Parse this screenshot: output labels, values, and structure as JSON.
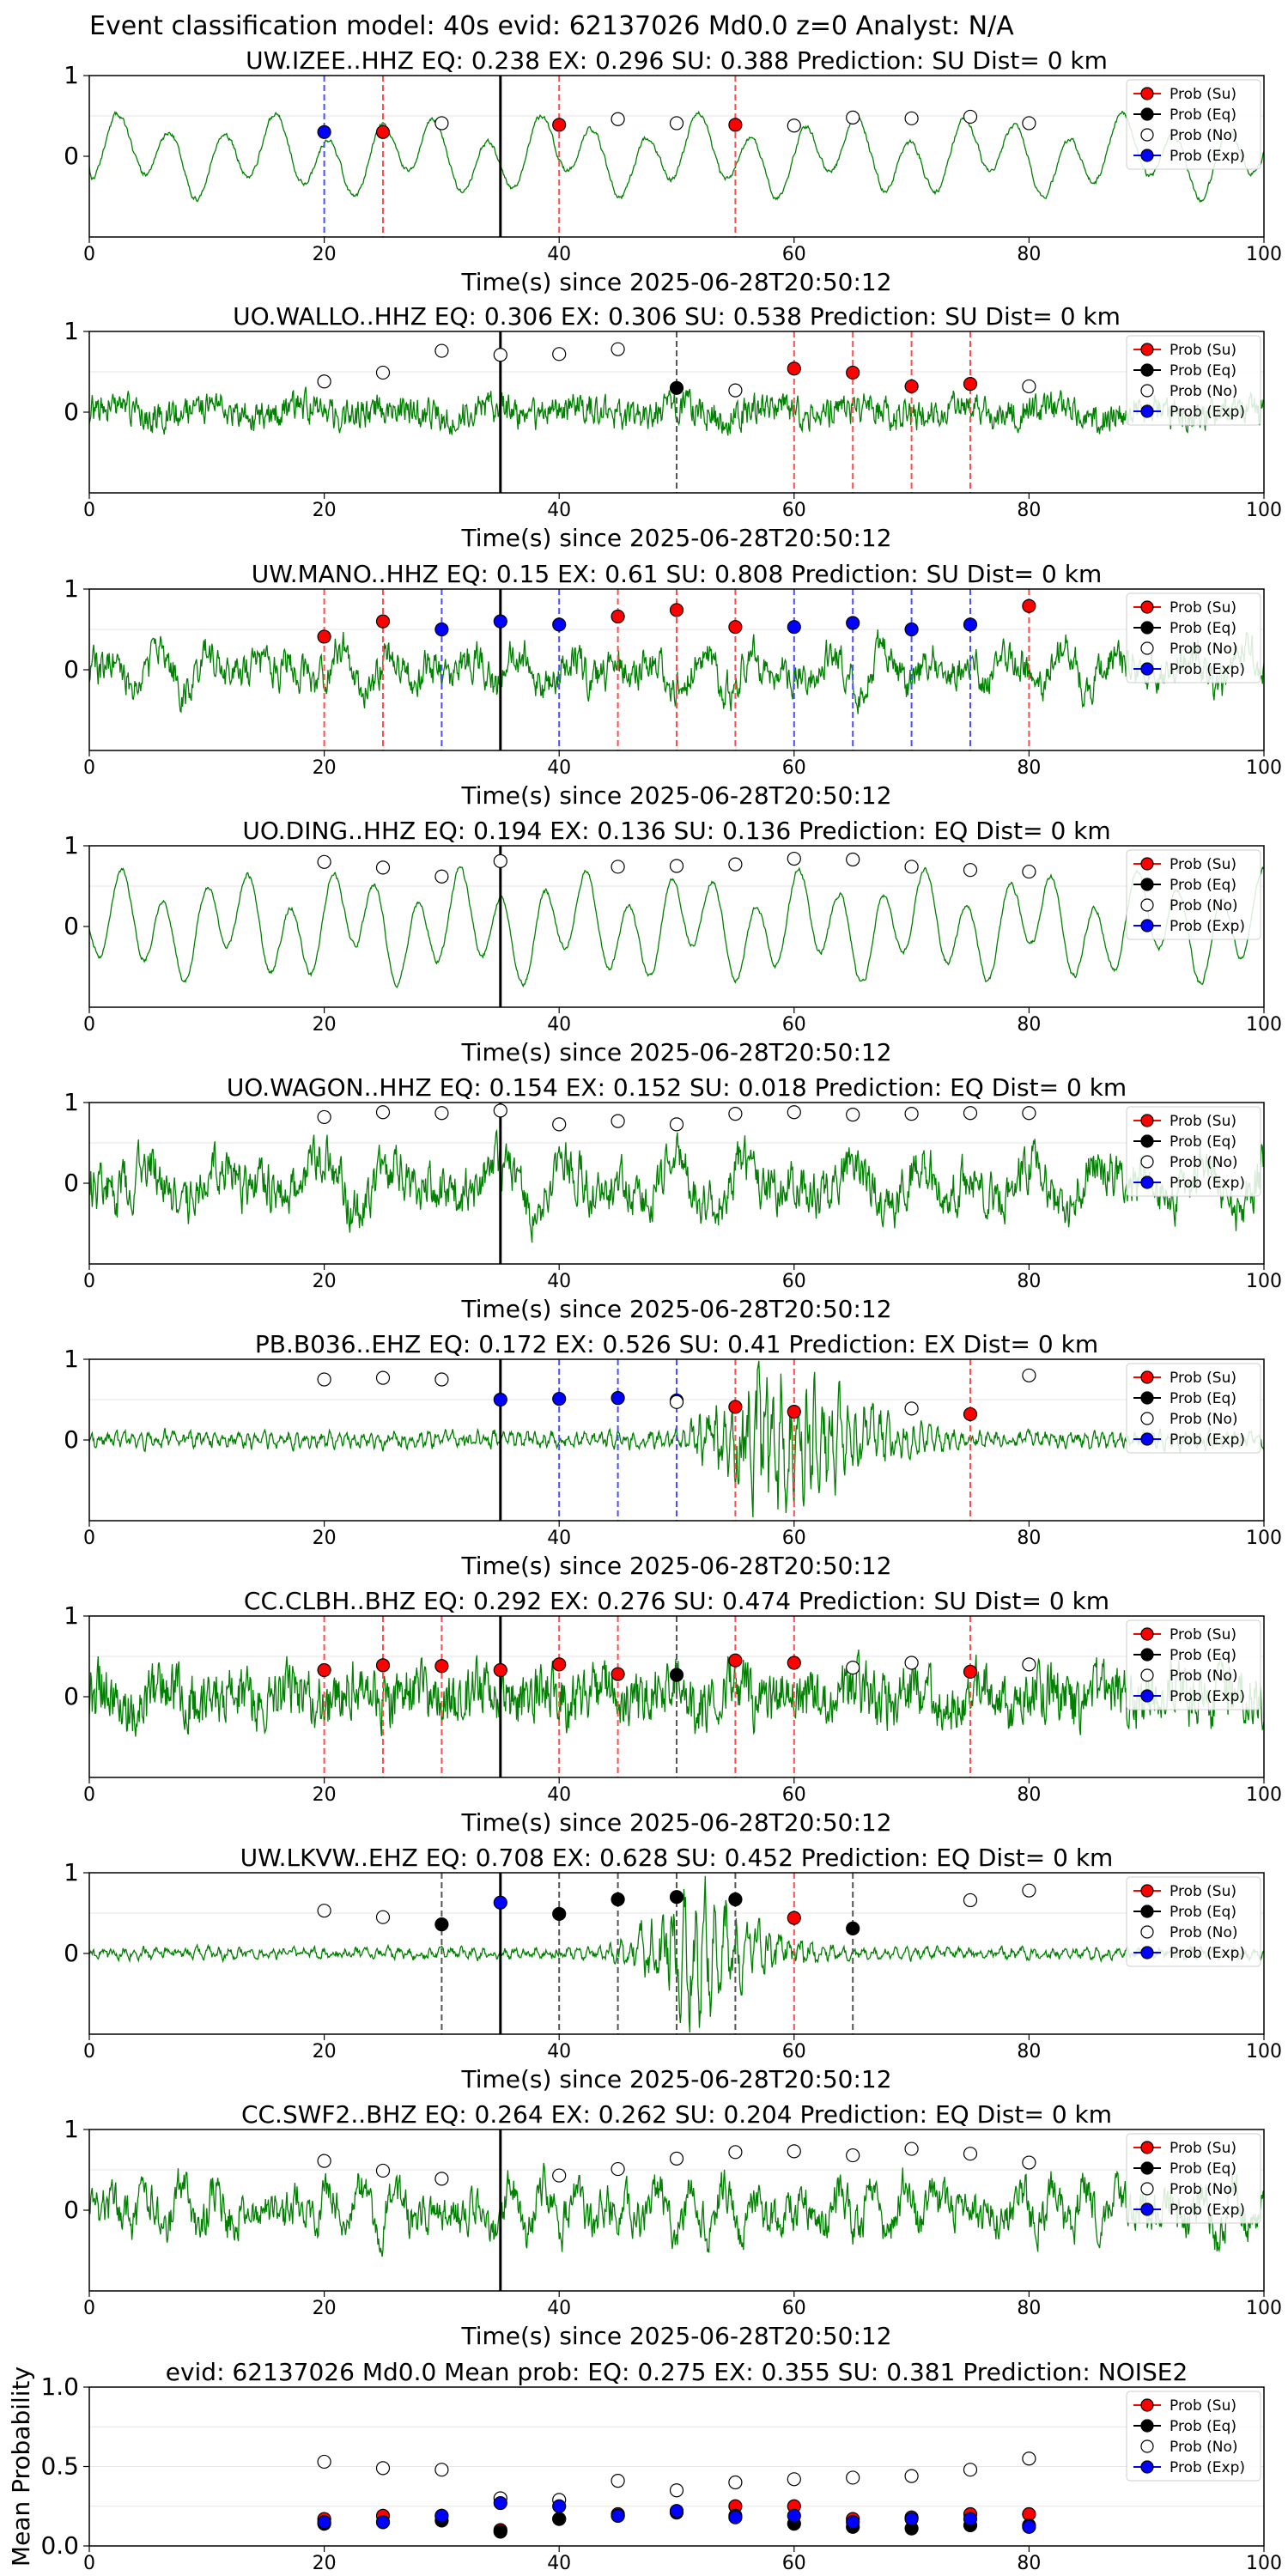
{
  "figure_title": "Event classification model: 40s evid: 62137026 Md0.0 z=0 Analyst: N/A",
  "legend_labels": [
    "Prob (Su)",
    "Prob (Eq)",
    "Prob (No)",
    "Prob (Exp)"
  ],
  "colors": {
    "su": "#ff0000",
    "eq": "#000000",
    "no": "#ffffff",
    "exp": "#0000ff",
    "trace": "#008000",
    "su_line": "#ff4d4d",
    "eq_line": "#555555",
    "exp_line": "#4d4dff"
  },
  "chart_data": [
    {
      "type": "line",
      "title": "UW.IZEE..HHZ   EQ: 0.238  EX: 0.296  SU: 0.388   Prediction: SU    Dist= 0 km",
      "xlabel": "Time(s) since 2025-06-28T20:50:12",
      "ylabel": "",
      "xlim": [
        0,
        100
      ],
      "ylim": [
        -1,
        1
      ],
      "xticks": [
        "0",
        "20",
        "40",
        "60",
        "80",
        "100"
      ],
      "yticks": [
        "0",
        "1"
      ],
      "grid": "horizontal",
      "legend": "top-right",
      "pick_time": 35,
      "trace": {
        "seed": 11,
        "style": "lowfreq",
        "amp": 0.45,
        "period": 4.5
      },
      "points": [
        {
          "x": 20,
          "y": 0.3,
          "cls": "exp"
        },
        {
          "x": 25,
          "y": 0.3,
          "cls": "su"
        },
        {
          "x": 30,
          "y": 0.41,
          "cls": "no"
        },
        {
          "x": 40,
          "y": 0.39,
          "cls": "su"
        },
        {
          "x": 45,
          "y": 0.46,
          "cls": "no"
        },
        {
          "x": 50,
          "y": 0.41,
          "cls": "no"
        },
        {
          "x": 55,
          "y": 0.39,
          "cls": "su"
        },
        {
          "x": 60,
          "y": 0.38,
          "cls": "no"
        },
        {
          "x": 65,
          "y": 0.48,
          "cls": "no"
        },
        {
          "x": 70,
          "y": 0.47,
          "cls": "no"
        },
        {
          "x": 75,
          "y": 0.49,
          "cls": "no"
        },
        {
          "x": 80,
          "y": 0.41,
          "cls": "no"
        }
      ]
    },
    {
      "type": "line",
      "title": "UO.WALLO..HHZ   EQ: 0.306  EX: 0.306  SU: 0.538   Prediction: SU    Dist= 0 km",
      "xlabel": "Time(s) since 2025-06-28T20:50:12",
      "ylabel": "",
      "xlim": [
        0,
        100
      ],
      "ylim": [
        -1,
        1
      ],
      "xticks": [
        "0",
        "20",
        "40",
        "60",
        "80",
        "100"
      ],
      "yticks": [
        "0",
        "1"
      ],
      "grid": "horizontal",
      "legend": "top-right",
      "pick_time": 35,
      "trace": {
        "seed": 23,
        "style": "noise",
        "amp": 0.16,
        "period": 1.2
      },
      "points": [
        {
          "x": 20,
          "y": 0.38,
          "cls": "no"
        },
        {
          "x": 25,
          "y": 0.49,
          "cls": "no"
        },
        {
          "x": 30,
          "y": 0.76,
          "cls": "no"
        },
        {
          "x": 35,
          "y": 0.71,
          "cls": "no"
        },
        {
          "x": 40,
          "y": 0.72,
          "cls": "no"
        },
        {
          "x": 45,
          "y": 0.78,
          "cls": "no"
        },
        {
          "x": 50,
          "y": 0.3,
          "cls": "eq"
        },
        {
          "x": 55,
          "y": 0.27,
          "cls": "no"
        },
        {
          "x": 60,
          "y": 0.54,
          "cls": "su"
        },
        {
          "x": 65,
          "y": 0.49,
          "cls": "su"
        },
        {
          "x": 70,
          "y": 0.32,
          "cls": "su"
        },
        {
          "x": 75,
          "y": 0.35,
          "cls": "su"
        },
        {
          "x": 80,
          "y": 0.32,
          "cls": "no"
        }
      ]
    },
    {
      "type": "line",
      "title": "UW.MANO..HHZ   EQ: 0.15  EX: 0.61  SU: 0.808   Prediction: SU    Dist= 0 km",
      "xlabel": "Time(s) since 2025-06-28T20:50:12",
      "ylabel": "",
      "xlim": [
        0,
        100
      ],
      "ylim": [
        -1,
        1
      ],
      "xticks": [
        "0",
        "20",
        "40",
        "60",
        "80",
        "100"
      ],
      "yticks": [
        "0",
        "1"
      ],
      "grid": "horizontal",
      "legend": "top-right",
      "pick_time": 35,
      "trace": {
        "seed": 37,
        "style": "mixed",
        "amp": 0.35,
        "period": 2.2
      },
      "points": [
        {
          "x": 20,
          "y": 0.41,
          "cls": "su"
        },
        {
          "x": 25,
          "y": 0.6,
          "cls": "su"
        },
        {
          "x": 30,
          "y": 0.5,
          "cls": "exp"
        },
        {
          "x": 35,
          "y": 0.6,
          "cls": "exp"
        },
        {
          "x": 40,
          "y": 0.56,
          "cls": "exp"
        },
        {
          "x": 45,
          "y": 0.66,
          "cls": "su"
        },
        {
          "x": 50,
          "y": 0.74,
          "cls": "su"
        },
        {
          "x": 55,
          "y": 0.53,
          "cls": "su"
        },
        {
          "x": 60,
          "y": 0.53,
          "cls": "exp"
        },
        {
          "x": 65,
          "y": 0.58,
          "cls": "exp"
        },
        {
          "x": 70,
          "y": 0.5,
          "cls": "exp"
        },
        {
          "x": 75,
          "y": 0.56,
          "cls": "exp"
        },
        {
          "x": 80,
          "y": 0.79,
          "cls": "su"
        }
      ]
    },
    {
      "type": "line",
      "title": "UO.DING..HHZ   EQ: 0.194  EX: 0.136  SU: 0.136   Prediction: EQ    Dist= 0 km",
      "xlabel": "Time(s) since 2025-06-28T20:50:12",
      "ylabel": "",
      "xlim": [
        0,
        100
      ],
      "ylim": [
        -1,
        1
      ],
      "xticks": [
        "0",
        "20",
        "40",
        "60",
        "80",
        "100"
      ],
      "yticks": [
        "0",
        "1"
      ],
      "grid": "horizontal",
      "legend": "top-right",
      "pick_time": 35,
      "trace": {
        "seed": 41,
        "style": "lowfreq",
        "amp": 0.62,
        "period": 3.6
      },
      "points": [
        {
          "x": 20,
          "y": 0.8,
          "cls": "no"
        },
        {
          "x": 25,
          "y": 0.73,
          "cls": "no"
        },
        {
          "x": 30,
          "y": 0.62,
          "cls": "no"
        },
        {
          "x": 35,
          "y": 0.81,
          "cls": "no"
        },
        {
          "x": 45,
          "y": 0.74,
          "cls": "no"
        },
        {
          "x": 50,
          "y": 0.75,
          "cls": "no"
        },
        {
          "x": 55,
          "y": 0.77,
          "cls": "no"
        },
        {
          "x": 60,
          "y": 0.84,
          "cls": "no"
        },
        {
          "x": 65,
          "y": 0.83,
          "cls": "no"
        },
        {
          "x": 70,
          "y": 0.74,
          "cls": "no"
        },
        {
          "x": 75,
          "y": 0.7,
          "cls": "no"
        },
        {
          "x": 80,
          "y": 0.68,
          "cls": "no"
        }
      ]
    },
    {
      "type": "line",
      "title": "UO.WAGON..HHZ   EQ: 0.154  EX: 0.152  SU: 0.018   Prediction: EQ    Dist= 0 km",
      "xlabel": "Time(s) since 2025-06-28T20:50:12",
      "ylabel": "",
      "xlim": [
        0,
        100
      ],
      "ylim": [
        -1,
        1
      ],
      "xticks": [
        "0",
        "20",
        "40",
        "60",
        "80",
        "100"
      ],
      "yticks": [
        "0",
        "1"
      ],
      "grid": "horizontal",
      "legend": "top-right",
      "pick_time": 35,
      "trace": {
        "seed": 53,
        "style": "mixed",
        "amp": 0.45,
        "period": 3.0
      },
      "points": [
        {
          "x": 20,
          "y": 0.82,
          "cls": "no"
        },
        {
          "x": 25,
          "y": 0.88,
          "cls": "no"
        },
        {
          "x": 30,
          "y": 0.87,
          "cls": "no"
        },
        {
          "x": 35,
          "y": 0.9,
          "cls": "no"
        },
        {
          "x": 40,
          "y": 0.73,
          "cls": "no"
        },
        {
          "x": 45,
          "y": 0.77,
          "cls": "no"
        },
        {
          "x": 50,
          "y": 0.73,
          "cls": "no"
        },
        {
          "x": 55,
          "y": 0.86,
          "cls": "no"
        },
        {
          "x": 60,
          "y": 0.88,
          "cls": "no"
        },
        {
          "x": 65,
          "y": 0.85,
          "cls": "no"
        },
        {
          "x": 70,
          "y": 0.86,
          "cls": "no"
        },
        {
          "x": 75,
          "y": 0.87,
          "cls": "no"
        },
        {
          "x": 80,
          "y": 0.87,
          "cls": "no"
        }
      ]
    },
    {
      "type": "line",
      "title": "PB.B036..EHZ   EQ: 0.172  EX: 0.526  SU: 0.41   Prediction: EX    Dist= 0 km",
      "xlabel": "Time(s) since 2025-06-28T20:50:12",
      "ylabel": "",
      "xlim": [
        0,
        100
      ],
      "ylim": [
        -1,
        1
      ],
      "xticks": [
        "0",
        "20",
        "40",
        "60",
        "80",
        "100"
      ],
      "yticks": [
        "0",
        "1"
      ],
      "grid": "horizontal",
      "legend": "top-right",
      "pick_time": 35,
      "trace": {
        "seed": 67,
        "style": "burst",
        "amp": 0.1,
        "period": 0.7,
        "burst_start": 48,
        "burst_peak": 57,
        "burst_end": 76,
        "burst_amp": 0.95
      },
      "points": [
        {
          "x": 20,
          "y": 0.75,
          "cls": "no"
        },
        {
          "x": 25,
          "y": 0.77,
          "cls": "no"
        },
        {
          "x": 30,
          "y": 0.75,
          "cls": "no"
        },
        {
          "x": 35,
          "y": 0.5,
          "cls": "exp"
        },
        {
          "x": 40,
          "y": 0.51,
          "cls": "exp"
        },
        {
          "x": 45,
          "y": 0.52,
          "cls": "exp"
        },
        {
          "x": 50,
          "y": 0.49,
          "cls": "exp"
        },
        {
          "x": 50,
          "y": 0.47,
          "cls": "no"
        },
        {
          "x": 55,
          "y": 0.41,
          "cls": "su"
        },
        {
          "x": 60,
          "y": 0.35,
          "cls": "su"
        },
        {
          "x": 70,
          "y": 0.39,
          "cls": "no"
        },
        {
          "x": 75,
          "y": 0.32,
          "cls": "su"
        },
        {
          "x": 80,
          "y": 0.8,
          "cls": "no"
        }
      ]
    },
    {
      "type": "line",
      "title": "CC.CLBH..BHZ   EQ: 0.292  EX: 0.276  SU: 0.474   Prediction: SU    Dist= 0 km",
      "xlabel": "Time(s) since 2025-06-28T20:50:12",
      "ylabel": "",
      "xlim": [
        0,
        100
      ],
      "ylim": [
        -1,
        1
      ],
      "xticks": [
        "0",
        "20",
        "40",
        "60",
        "80",
        "100"
      ],
      "yticks": [
        "0",
        "1"
      ],
      "grid": "horizontal",
      "legend": "top-right",
      "pick_time": 35,
      "trace": {
        "seed": 79,
        "style": "noise",
        "amp": 0.3,
        "period": 0.8
      },
      "points": [
        {
          "x": 20,
          "y": 0.33,
          "cls": "su"
        },
        {
          "x": 25,
          "y": 0.39,
          "cls": "su"
        },
        {
          "x": 30,
          "y": 0.38,
          "cls": "su"
        },
        {
          "x": 35,
          "y": 0.33,
          "cls": "su"
        },
        {
          "x": 40,
          "y": 0.4,
          "cls": "su"
        },
        {
          "x": 45,
          "y": 0.28,
          "cls": "su"
        },
        {
          "x": 50,
          "y": 0.27,
          "cls": "eq"
        },
        {
          "x": 55,
          "y": 0.45,
          "cls": "su"
        },
        {
          "x": 60,
          "y": 0.42,
          "cls": "su"
        },
        {
          "x": 65,
          "y": 0.36,
          "cls": "no"
        },
        {
          "x": 70,
          "y": 0.42,
          "cls": "no"
        },
        {
          "x": 75,
          "y": 0.31,
          "cls": "su"
        },
        {
          "x": 80,
          "y": 0.4,
          "cls": "no"
        }
      ]
    },
    {
      "type": "line",
      "title": "UW.LKVW..EHZ   EQ: 0.708  EX: 0.628  SU: 0.452   Prediction: EQ    Dist= 0 km",
      "xlabel": "Time(s) since 2025-06-28T20:50:12",
      "ylabel": "",
      "xlim": [
        0,
        100
      ],
      "ylim": [
        -1,
        1
      ],
      "xticks": [
        "0",
        "20",
        "40",
        "60",
        "80",
        "100"
      ],
      "yticks": [
        "0",
        "1"
      ],
      "grid": "horizontal",
      "legend": "top-right",
      "pick_time": 35,
      "trace": {
        "seed": 83,
        "style": "burst",
        "amp": 0.07,
        "period": 0.9,
        "burst_start": 42,
        "burst_peak": 51,
        "burst_end": 66,
        "burst_amp": 0.75
      },
      "points": [
        {
          "x": 20,
          "y": 0.53,
          "cls": "no"
        },
        {
          "x": 25,
          "y": 0.45,
          "cls": "no"
        },
        {
          "x": 30,
          "y": 0.36,
          "cls": "eq"
        },
        {
          "x": 35,
          "y": 0.63,
          "cls": "exp"
        },
        {
          "x": 40,
          "y": 0.49,
          "cls": "eq"
        },
        {
          "x": 45,
          "y": 0.67,
          "cls": "eq"
        },
        {
          "x": 50,
          "y": 0.7,
          "cls": "eq"
        },
        {
          "x": 55,
          "y": 0.67,
          "cls": "eq"
        },
        {
          "x": 60,
          "y": 0.44,
          "cls": "su"
        },
        {
          "x": 65,
          "y": 0.31,
          "cls": "eq"
        },
        {
          "x": 75,
          "y": 0.66,
          "cls": "no"
        },
        {
          "x": 80,
          "y": 0.78,
          "cls": "no"
        }
      ]
    },
    {
      "type": "line",
      "title": "CC.SWF2..BHZ   EQ: 0.264  EX: 0.262  SU: 0.204   Prediction: EQ    Dist= 0 km",
      "xlabel": "Time(s) since 2025-06-28T20:50:12",
      "ylabel": "",
      "xlim": [
        0,
        100
      ],
      "ylim": [
        -1,
        1
      ],
      "xticks": [
        "0",
        "20",
        "40",
        "60",
        "80",
        "100"
      ],
      "yticks": [
        "0",
        "1"
      ],
      "grid": "horizontal",
      "legend": "top-right",
      "pick_time": 35,
      "trace": {
        "seed": 97,
        "style": "mixed",
        "amp": 0.4,
        "period": 1.4
      },
      "points": [
        {
          "x": 20,
          "y": 0.61,
          "cls": "no"
        },
        {
          "x": 25,
          "y": 0.49,
          "cls": "no"
        },
        {
          "x": 30,
          "y": 0.39,
          "cls": "no"
        },
        {
          "x": 40,
          "y": 0.43,
          "cls": "no"
        },
        {
          "x": 45,
          "y": 0.51,
          "cls": "no"
        },
        {
          "x": 50,
          "y": 0.64,
          "cls": "no"
        },
        {
          "x": 55,
          "y": 0.72,
          "cls": "no"
        },
        {
          "x": 60,
          "y": 0.73,
          "cls": "no"
        },
        {
          "x": 65,
          "y": 0.68,
          "cls": "no"
        },
        {
          "x": 70,
          "y": 0.76,
          "cls": "no"
        },
        {
          "x": 75,
          "y": 0.7,
          "cls": "no"
        },
        {
          "x": 80,
          "y": 0.59,
          "cls": "no"
        }
      ]
    },
    {
      "type": "scatter",
      "title": "evid: 62137026  Md0.0   Mean prob:    EQ: 0.275  EX: 0.355  SU: 0.381   Prediction: NOISE2",
      "xlabel": "",
      "ylabel": "Mean Probability",
      "xlim": [
        0,
        100
      ],
      "ylim": [
        0,
        1
      ],
      "xticks": [
        "0",
        "20",
        "40",
        "60",
        "80",
        "100"
      ],
      "yticks": [
        "0.0",
        "0.5",
        "1.0"
      ],
      "grid": "horizontal",
      "legend": "top-right",
      "x": [
        20,
        25,
        30,
        35,
        40,
        45,
        50,
        55,
        60,
        65,
        70,
        75,
        80
      ],
      "series": [
        {
          "name": "Prob (No)",
          "cls": "no",
          "values": [
            0.53,
            0.49,
            0.48,
            0.3,
            0.29,
            0.41,
            0.35,
            0.4,
            0.42,
            0.43,
            0.44,
            0.48,
            0.55
          ]
        },
        {
          "name": "Prob (Su)",
          "cls": "su",
          "values": [
            0.17,
            0.19,
            0.19,
            0.1,
            0.17,
            0.2,
            0.22,
            0.25,
            0.25,
            0.17,
            0.18,
            0.2,
            0.2
          ]
        },
        {
          "name": "Prob (Eq)",
          "cls": "eq",
          "values": [
            0.14,
            0.15,
            0.16,
            0.09,
            0.17,
            0.19,
            0.21,
            0.19,
            0.14,
            0.12,
            0.11,
            0.13,
            0.13
          ]
        },
        {
          "name": "Prob (Exp)",
          "cls": "exp",
          "values": [
            0.15,
            0.15,
            0.19,
            0.27,
            0.25,
            0.19,
            0.22,
            0.18,
            0.19,
            0.15,
            0.17,
            0.17,
            0.12
          ]
        }
      ]
    }
  ]
}
